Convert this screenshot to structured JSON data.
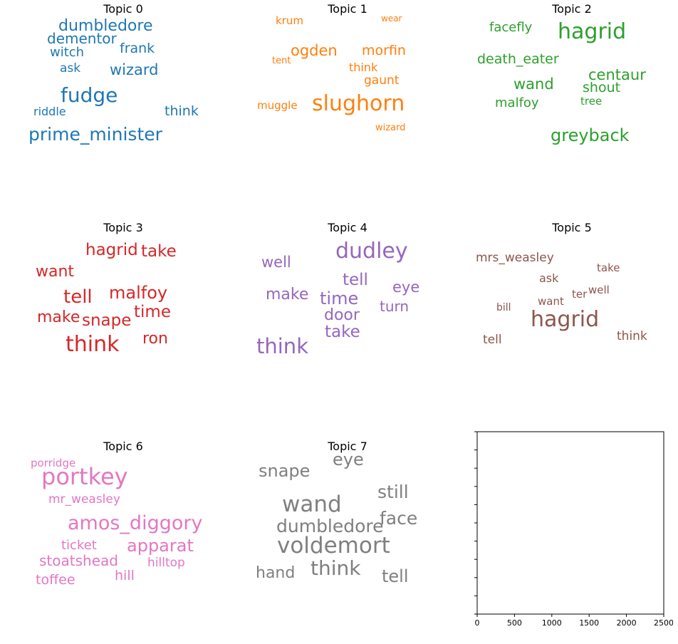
{
  "chart_data": [
    {
      "type": "wordcloud",
      "title": "Topic 0",
      "color": "#1f77b4",
      "words": [
        {
          "text": "fudge",
          "weight": 28
        },
        {
          "text": "prime_minister",
          "weight": 25
        },
        {
          "text": "dumbledore",
          "weight": 22
        },
        {
          "text": "wizard",
          "weight": 21
        },
        {
          "text": "dementor",
          "weight": 20
        },
        {
          "text": "frank",
          "weight": 19
        },
        {
          "text": "witch",
          "weight": 18
        },
        {
          "text": "think",
          "weight": 19
        },
        {
          "text": "ask",
          "weight": 17
        },
        {
          "text": "riddle",
          "weight": 16
        }
      ]
    },
    {
      "type": "wordcloud",
      "title": "Topic 1",
      "color": "#ff7f0e",
      "words": [
        {
          "text": "slughorn",
          "weight": 30
        },
        {
          "text": "ogden",
          "weight": 21
        },
        {
          "text": "morfin",
          "weight": 19
        },
        {
          "text": "gaunt",
          "weight": 17
        },
        {
          "text": "think",
          "weight": 16
        },
        {
          "text": "muggle",
          "weight": 15
        },
        {
          "text": "krum",
          "weight": 15
        },
        {
          "text": "tent",
          "weight": 13
        },
        {
          "text": "wizard",
          "weight": 13
        },
        {
          "text": "wear",
          "weight": 12
        }
      ]
    },
    {
      "type": "wordcloud",
      "title": "Topic 2",
      "color": "#2ca02c",
      "words": [
        {
          "text": "hagrid",
          "weight": 30
        },
        {
          "text": "greyback",
          "weight": 24
        },
        {
          "text": "centaur",
          "weight": 21
        },
        {
          "text": "wand",
          "weight": 21
        },
        {
          "text": "death_eater",
          "weight": 19
        },
        {
          "text": "shout",
          "weight": 19
        },
        {
          "text": "facefly",
          "weight": 18
        },
        {
          "text": "malfoy",
          "weight": 18
        },
        {
          "text": "tree",
          "weight": 15
        }
      ]
    },
    {
      "type": "wordcloud",
      "title": "Topic 3",
      "color": "#d62728",
      "words": [
        {
          "text": "think",
          "weight": 30
        },
        {
          "text": "tell",
          "weight": 26
        },
        {
          "text": "malfoy",
          "weight": 24
        },
        {
          "text": "time",
          "weight": 23
        },
        {
          "text": "snape",
          "weight": 23
        },
        {
          "text": "take",
          "weight": 23
        },
        {
          "text": "hagrid",
          "weight": 23
        },
        {
          "text": "make",
          "weight": 22
        },
        {
          "text": "want",
          "weight": 22
        },
        {
          "text": "ron",
          "weight": 22
        }
      ]
    },
    {
      "type": "wordcloud",
      "title": "Topic 4",
      "color": "#9467bd",
      "words": [
        {
          "text": "dudley",
          "weight": 30
        },
        {
          "text": "think",
          "weight": 29
        },
        {
          "text": "time",
          "weight": 24
        },
        {
          "text": "tell",
          "weight": 23
        },
        {
          "text": "take",
          "weight": 23
        },
        {
          "text": "door",
          "weight": 22
        },
        {
          "text": "make",
          "weight": 22
        },
        {
          "text": "well",
          "weight": 21
        },
        {
          "text": "eye",
          "weight": 21
        },
        {
          "text": "turn",
          "weight": 20
        }
      ]
    },
    {
      "type": "wordcloud",
      "title": "Topic 5",
      "color": "#8c564b",
      "words": [
        {
          "text": "hagrid",
          "weight": 30
        },
        {
          "text": "mrs_weasley",
          "weight": 17
        },
        {
          "text": "tell",
          "weight": 17
        },
        {
          "text": "think",
          "weight": 17
        },
        {
          "text": "ask",
          "weight": 16
        },
        {
          "text": "want",
          "weight": 15
        },
        {
          "text": "well",
          "weight": 15
        },
        {
          "text": "take",
          "weight": 15
        },
        {
          "text": "ter",
          "weight": 15
        },
        {
          "text": "bill",
          "weight": 14
        }
      ]
    },
    {
      "type": "wordcloud",
      "title": "Topic 6",
      "color": "#e377c2",
      "words": [
        {
          "text": "portkey",
          "weight": 32
        },
        {
          "text": "amos_diggory",
          "weight": 27
        },
        {
          "text": "apparat",
          "weight": 24
        },
        {
          "text": "stoatshead",
          "weight": 20
        },
        {
          "text": "hill",
          "weight": 19
        },
        {
          "text": "toffee",
          "weight": 19
        },
        {
          "text": "ticket",
          "weight": 18
        },
        {
          "text": "mr_weasley",
          "weight": 17
        },
        {
          "text": "hilltop",
          "weight": 17
        },
        {
          "text": "porridge",
          "weight": 15
        }
      ]
    },
    {
      "type": "wordcloud",
      "title": "Topic 7",
      "color": "#7f7f7f",
      "words": [
        {
          "text": "voldemort",
          "weight": 31
        },
        {
          "text": "wand",
          "weight": 31
        },
        {
          "text": "think",
          "weight": 28
        },
        {
          "text": "dumbledore",
          "weight": 25
        },
        {
          "text": "still",
          "weight": 25
        },
        {
          "text": "face",
          "weight": 25
        },
        {
          "text": "snape",
          "weight": 24
        },
        {
          "text": "eye",
          "weight": 24
        },
        {
          "text": "tell",
          "weight": 24
        },
        {
          "text": "hand",
          "weight": 22
        }
      ]
    },
    {
      "type": "empty_axes",
      "xlim": [
        0,
        2500
      ],
      "x_ticks": [
        "0",
        "500",
        "1000",
        "1500",
        "2000",
        "2500"
      ],
      "grid": false
    }
  ]
}
